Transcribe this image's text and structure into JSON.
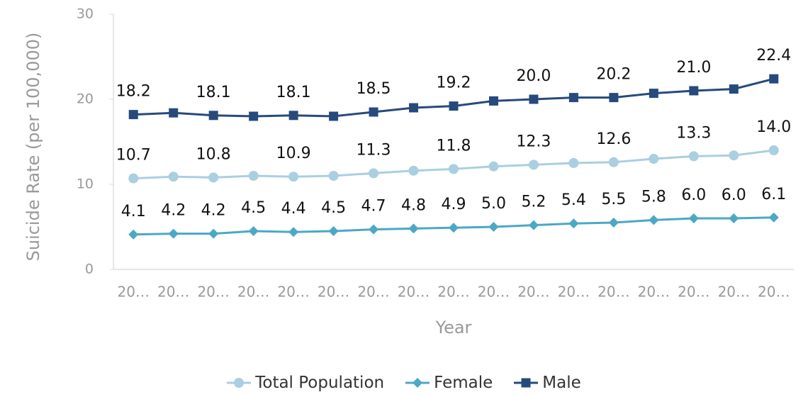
{
  "chart_data": {
    "type": "line",
    "y_label": "Suicide Rate (per 100,000)",
    "x_label": "Year",
    "categories": [
      "20…",
      "20…",
      "20…",
      "20…",
      "20…",
      "20…",
      "20…",
      "20…",
      "20…",
      "20…",
      "20…",
      "20…",
      "20…",
      "20…",
      "20…",
      "20…",
      "20…"
    ],
    "ylim": [
      0,
      30
    ],
    "yticks": [
      0,
      10,
      20,
      30
    ],
    "grid": false,
    "legend": "bottom",
    "series": [
      {
        "name": "Total Population",
        "color": "#a9cfe0",
        "marker": "circle",
        "values": [
          10.7,
          10.9,
          10.8,
          11.0,
          10.9,
          11.0,
          11.3,
          11.6,
          11.8,
          12.1,
          12.3,
          12.5,
          12.6,
          13.0,
          13.3,
          13.4,
          14.0
        ],
        "value_labels": [
          "10.7",
          null,
          "10.8",
          null,
          "10.9",
          null,
          "11.3",
          null,
          "11.8",
          null,
          "12.3",
          null,
          "12.6",
          null,
          "13.3",
          null,
          "14.0"
        ]
      },
      {
        "name": "Female",
        "color": "#4ba8c6",
        "marker": "diamond",
        "values": [
          4.1,
          4.2,
          4.2,
          4.5,
          4.4,
          4.5,
          4.7,
          4.8,
          4.9,
          5.0,
          5.2,
          5.4,
          5.5,
          5.8,
          6.0,
          6.0,
          6.1
        ],
        "value_labels": [
          "4.1",
          "4.2",
          "4.2",
          "4.5",
          "4.4",
          "4.5",
          "4.7",
          "4.8",
          "4.9",
          "5.0",
          "5.2",
          "5.4",
          "5.5",
          "5.8",
          "6.0",
          "6.0",
          "6.1"
        ]
      },
      {
        "name": "Male",
        "color": "#264a7c",
        "marker": "square",
        "values": [
          18.2,
          18.4,
          18.1,
          18.0,
          18.1,
          18.0,
          18.5,
          19.0,
          19.2,
          19.8,
          20.0,
          20.2,
          20.2,
          20.7,
          21.0,
          21.2,
          22.4
        ],
        "value_labels": [
          "18.2",
          null,
          "18.1",
          null,
          "18.1",
          null,
          "18.5",
          null,
          "19.2",
          null,
          "20.0",
          null,
          "20.2",
          null,
          "21.0",
          null,
          "22.4"
        ]
      }
    ]
  }
}
